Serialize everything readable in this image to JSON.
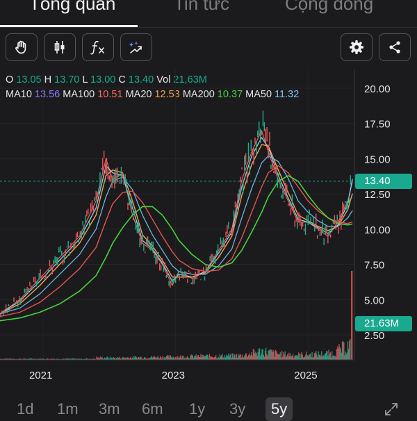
{
  "tabs": [
    {
      "label": "Tổng quan",
      "active": true
    },
    {
      "label": "Tin tức",
      "active": false
    },
    {
      "label": "Cộng đồng",
      "active": false
    }
  ],
  "toolbar": {
    "icons": [
      "hand-icon",
      "candlestick-icon",
      "function-icon",
      "magic-draw-icon",
      "settings-icon",
      "share-icon"
    ]
  },
  "ohlc": {
    "o_label": "O",
    "o": "13.05",
    "h_label": "H",
    "h": "13.70",
    "l_label": "L",
    "l": "13.00",
    "c_label": "C",
    "c": "13.40",
    "vol_label": "Vol",
    "vol": "21,63M"
  },
  "ma": {
    "ma10_label": "MA10",
    "ma10": "13.56",
    "ma100_label": "MA100",
    "ma100": "10.51",
    "ma20_label": "MA20",
    "ma20": "12.53",
    "ma200_label": "MA200",
    "ma200": "10.37",
    "ma50_label": "MA50",
    "ma50": "11.32"
  },
  "colors": {
    "ma10": "#8b7cff",
    "ma100": "#ff6a5a",
    "ma20": "#f0a44a",
    "ma200": "#49d13e",
    "ma50": "#7ec7f2",
    "value": "#18a98f",
    "up": "#20b08f",
    "down": "#e8545a"
  },
  "last_price_label": "13.40",
  "last_volume_label": "21.63M",
  "ranges": [
    {
      "label": "1d",
      "active": false
    },
    {
      "label": "1m",
      "active": false
    },
    {
      "label": "3m",
      "active": false
    },
    {
      "label": "6m",
      "active": false
    },
    {
      "label": "1y",
      "active": false
    },
    {
      "label": "3y",
      "active": false
    },
    {
      "label": "5y",
      "active": true
    }
  ],
  "chart_data": {
    "type": "line",
    "y_ticks": [
      "20.00",
      "17.50",
      "15.00",
      "12.50",
      "10.00",
      "7.50",
      "5.00",
      "2.50"
    ],
    "x_ticks": [
      "2021",
      "2023",
      "2025"
    ],
    "ylim": [
      0,
      20
    ],
    "series": [
      {
        "name": "Price",
        "color": "#f0a44a",
        "points": [
          [
            2020.3,
            4.0
          ],
          [
            2020.6,
            5.0
          ],
          [
            2020.9,
            6.5
          ],
          [
            2021.2,
            8.0
          ],
          [
            2021.5,
            9.5
          ],
          [
            2021.75,
            12.0
          ],
          [
            2021.9,
            15.0
          ],
          [
            2022.0,
            13.5
          ],
          [
            2022.15,
            14.0
          ],
          [
            2022.3,
            11.0
          ],
          [
            2022.45,
            9.0
          ],
          [
            2022.6,
            8.5
          ],
          [
            2022.75,
            7.5
          ],
          [
            2022.9,
            6.0
          ],
          [
            2023.0,
            7.0
          ],
          [
            2023.2,
            6.5
          ],
          [
            2023.4,
            7.0
          ],
          [
            2023.6,
            8.5
          ],
          [
            2023.8,
            10.0
          ],
          [
            2023.95,
            13.5
          ],
          [
            2024.1,
            15.5
          ],
          [
            2024.25,
            17.0
          ],
          [
            2024.35,
            15.5
          ],
          [
            2024.5,
            13.5
          ],
          [
            2024.65,
            12.0
          ],
          [
            2024.8,
            10.5
          ],
          [
            2024.95,
            10.5
          ],
          [
            2025.1,
            10.0
          ],
          [
            2025.25,
            9.5
          ],
          [
            2025.4,
            10.5
          ],
          [
            2025.55,
            12.0
          ],
          [
            2025.62,
            13.4
          ]
        ]
      },
      {
        "name": "MA10",
        "points": [
          [
            2020.3,
            4.0
          ],
          [
            2020.6,
            4.9
          ],
          [
            2020.9,
            6.3
          ],
          [
            2021.2,
            7.8
          ],
          [
            2021.5,
            9.3
          ],
          [
            2021.75,
            11.5
          ],
          [
            2021.9,
            14.5
          ],
          [
            2022.0,
            14.0
          ],
          [
            2022.15,
            13.8
          ],
          [
            2022.3,
            11.5
          ],
          [
            2022.45,
            9.2
          ],
          [
            2022.6,
            8.6
          ],
          [
            2022.75,
            7.6
          ],
          [
            2022.9,
            6.3
          ],
          [
            2023.0,
            6.8
          ],
          [
            2023.2,
            6.6
          ],
          [
            2023.4,
            7.0
          ],
          [
            2023.6,
            8.3
          ],
          [
            2023.8,
            9.8
          ],
          [
            2023.95,
            13.0
          ],
          [
            2024.1,
            15.2
          ],
          [
            2024.25,
            16.5
          ],
          [
            2024.35,
            15.8
          ],
          [
            2024.5,
            13.8
          ],
          [
            2024.65,
            12.2
          ],
          [
            2024.8,
            10.7
          ],
          [
            2024.95,
            10.5
          ],
          [
            2025.1,
            10.1
          ],
          [
            2025.25,
            9.7
          ],
          [
            2025.4,
            10.3
          ],
          [
            2025.55,
            11.8
          ],
          [
            2025.62,
            13.56
          ]
        ]
      },
      {
        "name": "MA20",
        "points": [
          [
            2020.3,
            4.0
          ],
          [
            2020.6,
            4.7
          ],
          [
            2020.9,
            6.0
          ],
          [
            2021.2,
            7.5
          ],
          [
            2021.5,
            9.0
          ],
          [
            2021.75,
            11.0
          ],
          [
            2021.9,
            13.8
          ],
          [
            2022.0,
            14.2
          ],
          [
            2022.15,
            14.0
          ],
          [
            2022.3,
            12.0
          ],
          [
            2022.45,
            9.6
          ],
          [
            2022.6,
            8.8
          ],
          [
            2022.75,
            7.8
          ],
          [
            2022.9,
            6.6
          ],
          [
            2023.0,
            6.6
          ],
          [
            2023.2,
            6.6
          ],
          [
            2023.4,
            6.9
          ],
          [
            2023.6,
            8.0
          ],
          [
            2023.8,
            9.5
          ],
          [
            2023.95,
            12.4
          ],
          [
            2024.1,
            14.6
          ],
          [
            2024.25,
            16.0
          ],
          [
            2024.35,
            15.9
          ],
          [
            2024.5,
            14.2
          ],
          [
            2024.65,
            12.6
          ],
          [
            2024.8,
            11.0
          ],
          [
            2024.95,
            10.6
          ],
          [
            2025.1,
            10.2
          ],
          [
            2025.25,
            9.9
          ],
          [
            2025.4,
            10.2
          ],
          [
            2025.55,
            11.4
          ],
          [
            2025.62,
            12.53
          ]
        ]
      },
      {
        "name": "MA50",
        "points": [
          [
            2020.3,
            4.0
          ],
          [
            2020.6,
            4.4
          ],
          [
            2020.9,
            5.4
          ],
          [
            2021.2,
            6.8
          ],
          [
            2021.5,
            8.2
          ],
          [
            2021.75,
            10.0
          ],
          [
            2021.9,
            12.3
          ],
          [
            2022.0,
            13.4
          ],
          [
            2022.15,
            13.7
          ],
          [
            2022.3,
            12.8
          ],
          [
            2022.45,
            11.0
          ],
          [
            2022.6,
            9.6
          ],
          [
            2022.75,
            8.5
          ],
          [
            2022.9,
            7.4
          ],
          [
            2023.0,
            7.0
          ],
          [
            2023.2,
            6.8
          ],
          [
            2023.4,
            6.8
          ],
          [
            2023.6,
            7.4
          ],
          [
            2023.8,
            8.6
          ],
          [
            2023.95,
            10.8
          ],
          [
            2024.1,
            12.9
          ],
          [
            2024.25,
            14.7
          ],
          [
            2024.35,
            15.2
          ],
          [
            2024.5,
            14.8
          ],
          [
            2024.65,
            13.6
          ],
          [
            2024.8,
            12.0
          ],
          [
            2024.95,
            11.2
          ],
          [
            2025.1,
            10.6
          ],
          [
            2025.25,
            10.2
          ],
          [
            2025.4,
            10.2
          ],
          [
            2025.55,
            10.8
          ],
          [
            2025.62,
            11.32
          ]
        ]
      },
      {
        "name": "MA100",
        "points": [
          [
            2020.3,
            3.8
          ],
          [
            2020.6,
            4.1
          ],
          [
            2020.9,
            4.8
          ],
          [
            2021.2,
            5.9
          ],
          [
            2021.5,
            7.2
          ],
          [
            2021.75,
            8.7
          ],
          [
            2021.9,
            10.6
          ],
          [
            2022.0,
            11.8
          ],
          [
            2022.15,
            12.6
          ],
          [
            2022.3,
            12.7
          ],
          [
            2022.45,
            11.9
          ],
          [
            2022.6,
            10.7
          ],
          [
            2022.75,
            9.5
          ],
          [
            2022.9,
            8.4
          ],
          [
            2023.0,
            7.8
          ],
          [
            2023.2,
            7.2
          ],
          [
            2023.4,
            7.0
          ],
          [
            2023.6,
            7.1
          ],
          [
            2023.8,
            7.9
          ],
          [
            2023.95,
            9.4
          ],
          [
            2024.1,
            11.2
          ],
          [
            2024.25,
            13.0
          ],
          [
            2024.35,
            14.0
          ],
          [
            2024.5,
            14.5
          ],
          [
            2024.65,
            14.0
          ],
          [
            2024.8,
            13.0
          ],
          [
            2024.95,
            12.0
          ],
          [
            2025.1,
            11.3
          ],
          [
            2025.25,
            10.8
          ],
          [
            2025.4,
            10.5
          ],
          [
            2025.55,
            10.4
          ],
          [
            2025.62,
            10.51
          ]
        ]
      },
      {
        "name": "MA200",
        "points": [
          [
            2020.3,
            3.5
          ],
          [
            2020.6,
            3.7
          ],
          [
            2020.9,
            4.1
          ],
          [
            2021.2,
            4.7
          ],
          [
            2021.5,
            5.6
          ],
          [
            2021.75,
            6.7
          ],
          [
            2021.9,
            8.0
          ],
          [
            2022.0,
            9.0
          ],
          [
            2022.15,
            10.1
          ],
          [
            2022.3,
            11.0
          ],
          [
            2022.45,
            11.6
          ],
          [
            2022.6,
            11.6
          ],
          [
            2022.75,
            11.0
          ],
          [
            2022.9,
            10.0
          ],
          [
            2023.0,
            9.2
          ],
          [
            2023.2,
            8.2
          ],
          [
            2023.4,
            7.5
          ],
          [
            2023.6,
            7.3
          ],
          [
            2023.8,
            7.6
          ],
          [
            2023.95,
            8.5
          ],
          [
            2024.1,
            9.8
          ],
          [
            2024.25,
            11.2
          ],
          [
            2024.35,
            12.3
          ],
          [
            2024.5,
            13.4
          ],
          [
            2024.65,
            13.8
          ],
          [
            2024.8,
            13.4
          ],
          [
            2024.95,
            12.4
          ],
          [
            2025.1,
            11.5
          ],
          [
            2025.25,
            10.8
          ],
          [
            2025.4,
            10.4
          ],
          [
            2025.55,
            10.3
          ],
          [
            2025.62,
            10.37
          ]
        ]
      }
    ],
    "volume_peaks": [
      [
        2021.75,
        0.4
      ],
      [
        2022.0,
        0.35
      ],
      [
        2023.95,
        0.8
      ],
      [
        2024.25,
        1.7
      ],
      [
        2024.5,
        1.1
      ],
      [
        2024.8,
        0.9
      ],
      [
        2025.3,
        1.2
      ],
      [
        2025.58,
        2.9
      ],
      [
        2025.62,
        21.63
      ]
    ]
  }
}
